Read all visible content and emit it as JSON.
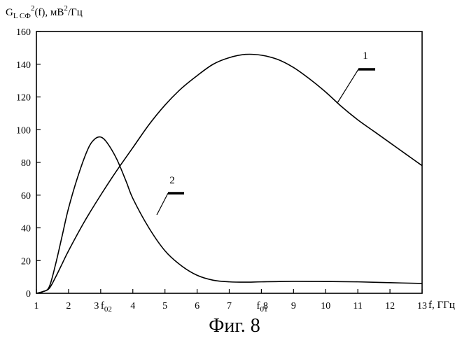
{
  "chart_data": {
    "type": "line",
    "ylabel_base": "G",
    "ylabel_sub": "L CФ",
    "ylabel_sup": "2",
    "ylabel_mid": "(f), мВ",
    "ylabel_sup2": "2",
    "ylabel_end": "/Гц",
    "xlabel": "f, ГГц",
    "xlim": [
      1,
      13
    ],
    "ylim": [
      0,
      160
    ],
    "x_ticks": [
      "1",
      "2",
      "3",
      "4",
      "5",
      "6",
      "7",
      "8",
      "9",
      "10",
      "11",
      "12",
      "13"
    ],
    "y_ticks": [
      "0",
      "20",
      "40",
      "60",
      "80",
      "100",
      "120",
      "140",
      "160"
    ],
    "x_annotations": [
      {
        "base": "f",
        "sub": "02",
        "x": 3.0
      },
      {
        "base": "f",
        "sub": "01",
        "x": 7.85
      }
    ],
    "grid": false,
    "series": [
      {
        "name": "1",
        "x": [
          1.0,
          1.2,
          1.4,
          1.6,
          1.8,
          2.0,
          2.5,
          3.0,
          3.5,
          4.0,
          4.5,
          5.0,
          5.5,
          6.0,
          6.5,
          7.0,
          7.5,
          8.0,
          8.5,
          9.0,
          9.5,
          10.0,
          10.5,
          11.0,
          11.5,
          12.0,
          12.5,
          13.0
        ],
        "y": [
          0,
          1,
          3,
          10,
          18,
          26,
          44,
          60,
          75,
          89,
          103,
          115,
          125,
          133,
          140,
          144,
          146,
          145.5,
          143,
          138,
          131,
          123,
          114,
          106,
          99,
          92,
          85,
          78
        ]
      },
      {
        "name": "2",
        "x": [
          1.0,
          1.2,
          1.4,
          1.6,
          1.8,
          2.0,
          2.3,
          2.6,
          2.8,
          3.0,
          3.2,
          3.5,
          3.8,
          4.0,
          4.5,
          5.0,
          5.5,
          6.0,
          6.5,
          7.0,
          7.5,
          8.0,
          9.0,
          10.0,
          11.0,
          12.0,
          13.0
        ],
        "y": [
          0,
          1,
          4,
          18,
          35,
          52,
          72,
          88,
          94,
          95.5,
          92,
          82,
          68,
          58,
          40,
          26,
          17,
          11,
          8,
          7,
          6.8,
          7,
          7.3,
          7.2,
          7,
          6.5,
          6
        ]
      }
    ]
  },
  "curve_labels": [
    {
      "text": "1",
      "series": "1"
    },
    {
      "text": "2",
      "series": "2"
    }
  ],
  "caption": "Фиг. 8"
}
